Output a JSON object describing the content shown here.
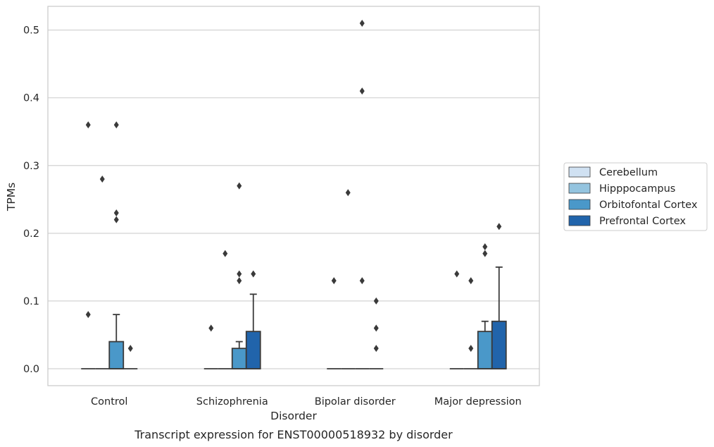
{
  "chart_data": {
    "type": "box",
    "caption": "Transcript expression for ENST00000518932 by disorder",
    "xlabel": "Disorder",
    "ylabel": "TPMs",
    "ylim": [
      -0.025,
      0.535
    ],
    "yticks": [
      0.0,
      0.1,
      0.2,
      0.3,
      0.4,
      0.5
    ],
    "ytick_labels": [
      "0.0",
      "0.1",
      "0.2",
      "0.3",
      "0.4",
      "0.5"
    ],
    "grid": "horizontal",
    "legend_placement": "right, outside",
    "categories": [
      "Control",
      "Schizophrenia",
      "Bipolar disorder",
      "Major depression"
    ],
    "series": [
      {
        "name": "Cerebellum",
        "color": "#d0e1f2",
        "boxes": [
          {
            "q1": 0,
            "median": 0,
            "q3": 0,
            "whisker_low": 0,
            "whisker_high": 0,
            "outliers": [
              0.36,
              0.08
            ]
          },
          {
            "q1": 0,
            "median": 0,
            "q3": 0,
            "whisker_low": 0,
            "whisker_high": 0,
            "outliers": [
              0.06
            ]
          },
          {
            "q1": 0,
            "median": 0,
            "q3": 0,
            "whisker_low": 0,
            "whisker_high": 0,
            "outliers": [
              0.13
            ]
          },
          {
            "q1": 0,
            "median": 0,
            "q3": 0,
            "whisker_low": 0,
            "whisker_high": 0,
            "outliers": [
              0.14
            ]
          }
        ]
      },
      {
        "name": "Hipppocampus",
        "color": "#94c4df",
        "boxes": [
          {
            "q1": 0,
            "median": 0,
            "q3": 0,
            "whisker_low": 0,
            "whisker_high": 0,
            "outliers": [
              0.28
            ]
          },
          {
            "q1": 0,
            "median": 0,
            "q3": 0,
            "whisker_low": 0,
            "whisker_high": 0,
            "outliers": [
              0.17
            ]
          },
          {
            "q1": 0,
            "median": 0,
            "q3": 0,
            "whisker_low": 0,
            "whisker_high": 0,
            "outliers": [
              0.26
            ]
          },
          {
            "q1": 0,
            "median": 0,
            "q3": 0,
            "whisker_low": 0,
            "whisker_high": 0,
            "outliers": [
              0.13,
              0.03
            ]
          }
        ]
      },
      {
        "name": "Orbitofontal Cortex",
        "color": "#4a98c9",
        "boxes": [
          {
            "q1": 0,
            "median": 0,
            "q3": 0.04,
            "whisker_low": 0,
            "whisker_high": 0.08,
            "outliers": [
              0.36,
              0.23,
              0.22
            ]
          },
          {
            "q1": 0,
            "median": 0,
            "q3": 0.03,
            "whisker_low": 0,
            "whisker_high": 0.04,
            "outliers": [
              0.27,
              0.14,
              0.13
            ]
          },
          {
            "q1": 0,
            "median": 0,
            "q3": 0,
            "whisker_low": 0,
            "whisker_high": 0,
            "outliers": [
              0.51,
              0.41,
              0.13
            ]
          },
          {
            "q1": 0,
            "median": 0,
            "q3": 0.055,
            "whisker_low": 0,
            "whisker_high": 0.07,
            "outliers": [
              0.18,
              0.17
            ]
          }
        ]
      },
      {
        "name": "Prefrontal Cortex",
        "color": "#2164ab",
        "boxes": [
          {
            "q1": 0,
            "median": 0,
            "q3": 0,
            "whisker_low": 0,
            "whisker_high": 0,
            "outliers": [
              0.03
            ]
          },
          {
            "q1": 0,
            "median": 0,
            "q3": 0.055,
            "whisker_low": 0,
            "whisker_high": 0.11,
            "outliers": [
              0.14
            ]
          },
          {
            "q1": 0,
            "median": 0,
            "q3": 0,
            "whisker_low": 0,
            "whisker_high": 0,
            "outliers": [
              0.1,
              0.06,
              0.03
            ]
          },
          {
            "q1": 0,
            "median": 0,
            "q3": 0.07,
            "whisker_low": 0,
            "whisker_high": 0.15,
            "outliers": [
              0.21
            ]
          }
        ]
      }
    ]
  }
}
